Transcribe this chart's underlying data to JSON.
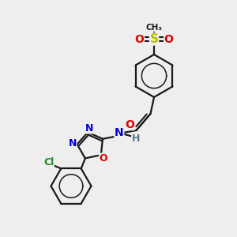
{
  "bg_color": "#eeeeee",
  "bond_color": "#1a1a1a",
  "atom_colors": {
    "N": "#0000cc",
    "O": "#dd0000",
    "S": "#bbbb00",
    "Cl": "#228822",
    "C": "#1a1a1a",
    "H": "#557788"
  }
}
